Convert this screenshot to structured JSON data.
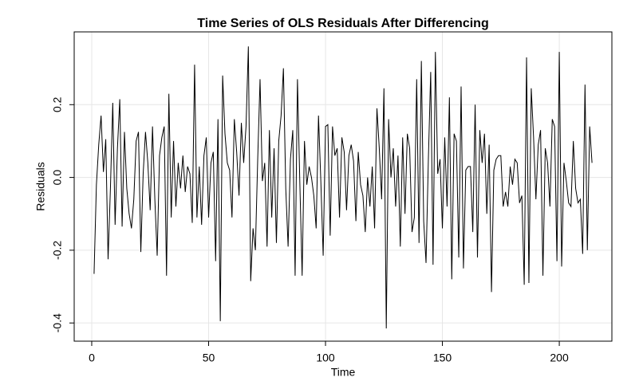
{
  "chart_data": {
    "type": "line",
    "title": "Time Series of OLS Residuals After Differencing",
    "x_label": "Time",
    "y_label": "Residuals",
    "x": [
      1,
      2,
      3,
      4,
      5,
      6,
      7,
      8,
      9,
      10,
      11,
      12,
      13,
      14,
      15,
      16,
      17,
      18,
      19,
      20,
      21,
      22,
      23,
      24,
      25,
      26,
      27,
      28,
      29,
      30,
      31,
      32,
      33,
      34,
      35,
      36,
      37,
      38,
      39,
      40,
      41,
      42,
      43,
      44,
      45,
      46,
      47,
      48,
      49,
      50,
      51,
      52,
      53,
      54,
      55,
      56,
      57,
      58,
      59,
      60,
      61,
      62,
      63,
      64,
      65,
      66,
      67,
      68,
      69,
      70,
      71,
      72,
      73,
      74,
      75,
      76,
      77,
      78,
      79,
      80,
      81,
      82,
      83,
      84,
      85,
      86,
      87,
      88,
      89,
      90,
      91,
      92,
      93,
      94,
      95,
      96,
      97,
      98,
      99,
      100,
      101,
      102,
      103,
      104,
      105,
      106,
      107,
      108,
      109,
      110,
      111,
      112,
      113,
      114,
      115,
      116,
      117,
      118,
      119,
      120,
      121,
      122,
      123,
      124,
      125,
      126,
      127,
      128,
      129,
      130,
      131,
      132,
      133,
      134,
      135,
      136,
      137,
      138,
      139,
      140,
      141,
      142,
      143,
      144,
      145,
      146,
      147,
      148,
      149,
      150,
      151,
      152,
      153,
      154,
      155,
      156,
      157,
      158,
      159,
      160,
      161,
      162,
      163,
      164,
      165,
      166,
      167,
      168,
      169,
      170,
      171,
      172,
      173,
      174,
      175,
      176,
      177,
      178,
      179,
      180,
      181,
      182,
      183,
      184,
      185,
      186,
      187,
      188,
      189,
      190,
      191,
      192,
      193,
      194,
      195,
      196,
      197,
      198,
      199,
      200,
      201,
      202,
      203,
      204,
      205,
      206,
      207,
      208,
      209,
      210,
      211,
      212,
      213,
      214
    ],
    "series": [
      {
        "color": "#000000",
        "values": [
          -0.265,
          -0.02,
          0.09,
          0.17,
          0.015,
          0.105,
          -0.225,
          -0.03,
          0.205,
          -0.13,
          0.08,
          0.215,
          -0.135,
          0.125,
          -0.03,
          -0.1,
          -0.14,
          -0.06,
          0.1,
          0.125,
          -0.205,
          0.01,
          0.125,
          0.04,
          -0.09,
          0.14,
          -0.06,
          -0.215,
          0.06,
          0.11,
          0.14,
          -0.27,
          0.23,
          -0.11,
          0.1,
          -0.08,
          0.04,
          -0.03,
          0.06,
          -0.04,
          0.03,
          0.01,
          -0.125,
          0.31,
          -0.11,
          0.03,
          -0.13,
          0.06,
          0.11,
          -0.11,
          0.04,
          0.07,
          -0.23,
          0.16,
          -0.395,
          0.28,
          0.12,
          0.04,
          0.02,
          -0.11,
          0.16,
          0.07,
          -0.05,
          0.15,
          0.04,
          0.14,
          0.36,
          -0.285,
          -0.14,
          -0.2,
          0.05,
          0.27,
          -0.01,
          0.04,
          -0.19,
          0.13,
          -0.11,
          0.08,
          -0.18,
          0.1,
          0.17,
          0.3,
          -0.03,
          -0.19,
          0.05,
          0.13,
          -0.27,
          0.27,
          -0.01,
          -0.27,
          0.1,
          -0.02,
          0.03,
          0.0,
          -0.05,
          -0.14,
          0.17,
          -0.01,
          -0.215,
          0.14,
          0.145,
          -0.16,
          0.14,
          0.06,
          0.08,
          -0.11,
          0.11,
          0.07,
          -0.09,
          0.06,
          0.09,
          0.045,
          -0.12,
          0.07,
          -0.02,
          -0.05,
          -0.15,
          0.0,
          -0.08,
          0.03,
          -0.14,
          0.19,
          0.08,
          -0.06,
          0.245,
          -0.415,
          0.16,
          0.0,
          0.08,
          -0.08,
          0.06,
          -0.19,
          0.11,
          -0.1,
          0.12,
          0.08,
          -0.15,
          -0.11,
          0.27,
          -0.18,
          0.32,
          -0.12,
          -0.235,
          0.05,
          0.29,
          -0.24,
          0.345,
          0.01,
          0.05,
          -0.14,
          0.11,
          -0.08,
          0.22,
          -0.28,
          0.12,
          0.1,
          -0.22,
          0.25,
          -0.25,
          0.02,
          0.03,
          0.03,
          -0.15,
          0.2,
          -0.22,
          0.13,
          0.04,
          0.12,
          -0.1,
          0.09,
          -0.315,
          0.02,
          0.05,
          0.06,
          0.06,
          -0.08,
          -0.04,
          -0.08,
          0.03,
          -0.02,
          0.05,
          0.04,
          -0.07,
          -0.05,
          -0.295,
          0.33,
          -0.29,
          0.245,
          0.11,
          -0.06,
          0.09,
          0.13,
          -0.27,
          0.08,
          0.04,
          -0.08,
          0.16,
          0.14,
          -0.23,
          0.345,
          -0.245,
          0.04,
          -0.01,
          -0.07,
          -0.08,
          0.1,
          -0.03,
          -0.07,
          -0.06,
          -0.21,
          0.255,
          -0.2,
          0.14,
          0.04
        ]
      }
    ],
    "xlim": [
      -7.5,
      222.5
    ],
    "ylim": [
      -0.45,
      0.4
    ],
    "xticks": [
      0,
      50,
      100,
      150,
      200
    ],
    "yticks": [
      -0.4,
      -0.2,
      {
        "value": 0,
        "label": "0.0"
      },
      0.2
    ],
    "grid": true
  }
}
